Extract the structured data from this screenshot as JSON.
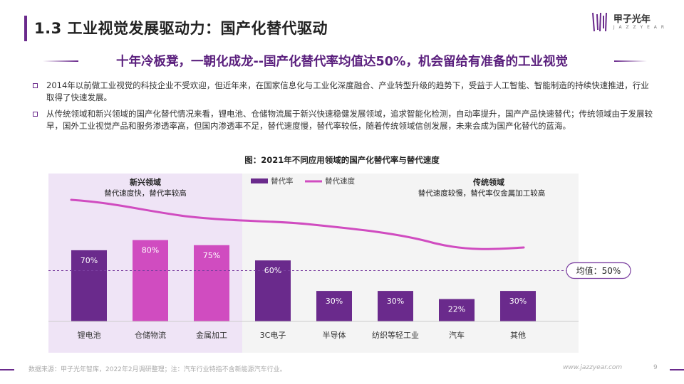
{
  "header": {
    "title": "1.3 工业视觉发展驱动力：国产化替代驱动",
    "logo_text": "甲子光年",
    "logo_sub": "J A Z Z Y E A R"
  },
  "subtitle": "十年冷板凳，一朝化成龙--国产化替代率均值达50%，机会留给有准备的工业视觉",
  "bullets": [
    "2014年以前做工业视觉的科技企业不受欢迎，但近年来，在国家信息化与工业化深度融合、产业转型升级的趋势下，受益于人工智能、智能制造的持续快速推进，行业取得了快速发展。",
    "从传统领域和新兴领域的国产化替代情况来看，锂电池、仓储物流属于新兴快速稳健发展领域，追求智能化检测，自动率提升，国产产品快速替代；传统领域由于发展较早，国外工业视觉产品和服务渗透率高，但国内渗透率不足，替代速度慢，替代率较低，随着传统领域信创发展，未来会成为国产化替代的蓝海。"
  ],
  "chart_data": {
    "type": "bar",
    "title": "图：2021年不同应用领域的国产化替代率与替代速度",
    "categories": [
      "锂电池",
      "仓储物流",
      "金属加工",
      "3C电子",
      "半导体",
      "纺织等轻工业",
      "汽车",
      "其他"
    ],
    "series": [
      {
        "name": "替代率",
        "values": [
          70,
          80,
          75,
          60,
          30,
          30,
          22,
          30
        ],
        "labels": [
          "70%",
          "80%",
          "75%",
          "60%",
          "30%",
          "30%",
          "22%",
          "30%"
        ]
      },
      {
        "name": "替代速度",
        "type": "line",
        "trend": "declining curve from 锂电池 to 其他"
      }
    ],
    "average": {
      "value": 50,
      "label": "均值：50%"
    },
    "regions": [
      {
        "name": "新兴领域",
        "desc": "替代速度快，替代率较高"
      },
      {
        "name": "传统领域",
        "desc": "替代速度较慢，替代率仅金属加工较高"
      }
    ],
    "ylim": [
      0,
      100
    ],
    "colors": {
      "dark_bar": "#6a2a8c",
      "pink_bar": "#d04cc0",
      "line": "#d04cc0",
      "avg_line": "#7b3fa0"
    }
  },
  "footer": {
    "source": "数据来源：甲子光年智库，2022年2月调研整理；注：汽车行业特指不含新能源汽车行业。",
    "url": "www.jazzyear.com",
    "page": "9"
  }
}
